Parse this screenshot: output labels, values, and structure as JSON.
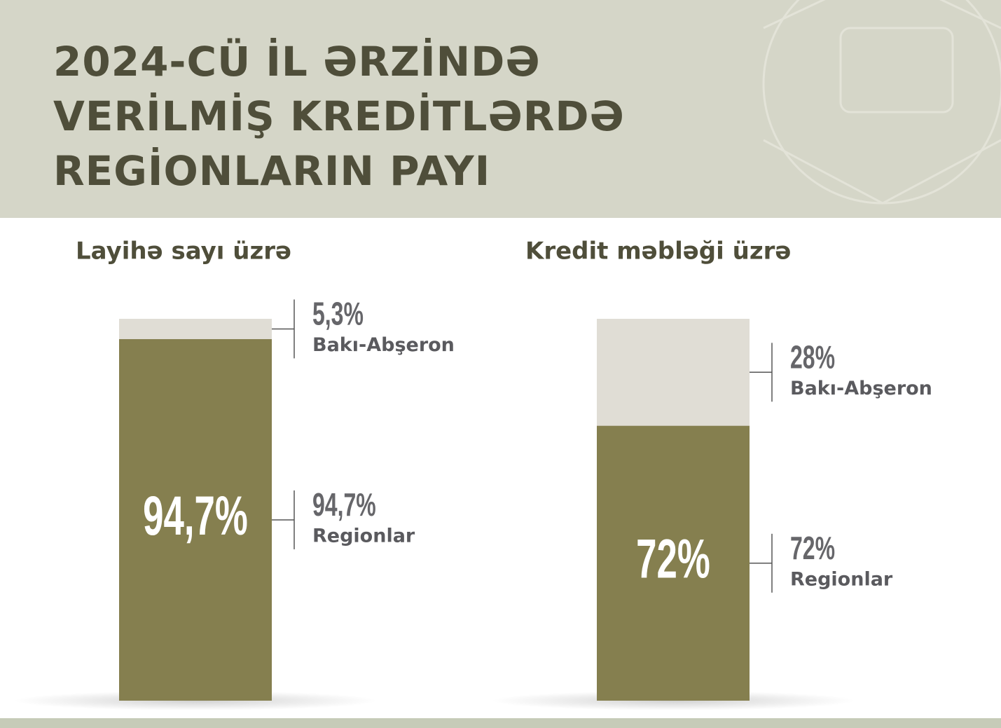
{
  "title": [
    "2024-CÜ İL ƏRZİNDƏ",
    "VERİLMİŞ KREDİTLƏRDƏ",
    "REGİONLARIN PAYI"
  ],
  "chart_data": [
    {
      "type": "stacked_bar",
      "subtitle": "Layihə sayı üzrə",
      "ylim": [
        0,
        100
      ],
      "series": [
        {
          "name": "Regionlar",
          "color": "#857f4f",
          "values": [
            94.7
          ],
          "value_labels": [
            "94,7%"
          ]
        },
        {
          "name": "Bakı-Abşeron",
          "color": "#e0ddd5",
          "values": [
            5.3
          ],
          "value_labels": [
            "5,3%"
          ]
        }
      ]
    },
    {
      "type": "stacked_bar",
      "subtitle": "Kredit məbləği üzrə",
      "ylim": [
        0,
        100
      ],
      "series": [
        {
          "name": "Regionlar",
          "color": "#857f4f",
          "values": [
            72
          ],
          "value_labels": [
            "72%"
          ]
        },
        {
          "name": "Bakı-Abşeron",
          "color": "#e0ddd5",
          "values": [
            28
          ],
          "value_labels": [
            "28%"
          ]
        }
      ]
    }
  ]
}
